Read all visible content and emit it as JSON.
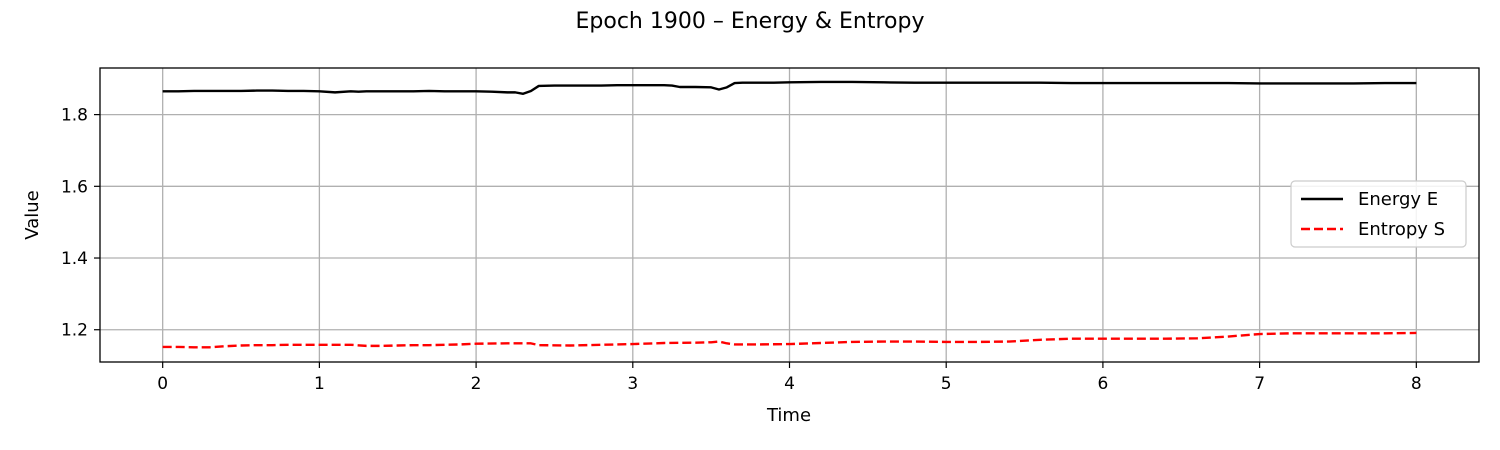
{
  "chart_data": {
    "type": "line",
    "title": "Epoch 1900 – Energy & Entropy",
    "xlabel": "Time",
    "ylabel": "Value",
    "xlim": [
      -0.4,
      8.4
    ],
    "ylim": [
      1.11,
      1.93
    ],
    "xticks": [
      0,
      1,
      2,
      3,
      4,
      5,
      6,
      7,
      8
    ],
    "yticks": [
      1.2,
      1.4,
      1.6,
      1.8
    ],
    "xtick_labels": [
      "0",
      "1",
      "2",
      "3",
      "4",
      "5",
      "6",
      "7",
      "8"
    ],
    "ytick_labels": [
      "1.2",
      "1.4",
      "1.6",
      "1.8"
    ],
    "grid": true,
    "legend_position": "center-right",
    "series": [
      {
        "name": "Energy E",
        "color": "#000000",
        "style": "solid",
        "x": [
          0,
          0.1,
          0.2,
          0.3,
          0.4,
          0.5,
          0.6,
          0.7,
          0.8,
          0.9,
          1.0,
          1.1,
          1.2,
          1.25,
          1.3,
          1.4,
          1.5,
          1.6,
          1.7,
          1.8,
          1.9,
          2.0,
          2.1,
          2.2,
          2.25,
          2.3,
          2.35,
          2.4,
          2.5,
          2.6,
          2.7,
          2.8,
          2.9,
          3.0,
          3.1,
          3.2,
          3.25,
          3.3,
          3.4,
          3.5,
          3.55,
          3.6,
          3.65,
          3.7,
          3.8,
          3.9,
          4.0,
          4.2,
          4.4,
          4.6,
          4.8,
          5.0,
          5.2,
          5.4,
          5.6,
          5.8,
          6.0,
          6.2,
          6.4,
          6.6,
          6.8,
          7.0,
          7.2,
          7.4,
          7.6,
          7.8,
          8.0
        ],
        "y": [
          1.865,
          1.865,
          1.866,
          1.866,
          1.866,
          1.866,
          1.867,
          1.867,
          1.866,
          1.866,
          1.865,
          1.862,
          1.865,
          1.864,
          1.865,
          1.865,
          1.865,
          1.865,
          1.866,
          1.865,
          1.865,
          1.865,
          1.864,
          1.862,
          1.862,
          1.858,
          1.866,
          1.88,
          1.881,
          1.881,
          1.881,
          1.881,
          1.882,
          1.882,
          1.882,
          1.882,
          1.881,
          1.877,
          1.877,
          1.876,
          1.87,
          1.876,
          1.888,
          1.889,
          1.889,
          1.889,
          1.89,
          1.891,
          1.891,
          1.89,
          1.889,
          1.889,
          1.889,
          1.889,
          1.889,
          1.888,
          1.888,
          1.888,
          1.888,
          1.888,
          1.888,
          1.887,
          1.887,
          1.887,
          1.887,
          1.888,
          1.888
        ]
      },
      {
        "name": "Entropy S",
        "color": "#ff0000",
        "style": "dashed",
        "x": [
          0,
          0.1,
          0.2,
          0.3,
          0.4,
          0.5,
          0.6,
          0.7,
          0.8,
          0.9,
          1.0,
          1.1,
          1.2,
          1.3,
          1.4,
          1.5,
          1.6,
          1.7,
          1.8,
          1.9,
          2.0,
          2.2,
          2.3,
          2.35,
          2.4,
          2.6,
          2.8,
          3.0,
          3.2,
          3.4,
          3.5,
          3.55,
          3.6,
          3.65,
          3.8,
          4.0,
          4.2,
          4.4,
          4.6,
          4.8,
          5.0,
          5.2,
          5.4,
          5.6,
          5.8,
          6.0,
          6.2,
          6.4,
          6.6,
          6.8,
          7.0,
          7.2,
          7.4,
          7.6,
          7.8,
          8.0
        ],
        "y": [
          1.152,
          1.152,
          1.151,
          1.151,
          1.154,
          1.156,
          1.157,
          1.157,
          1.158,
          1.158,
          1.158,
          1.158,
          1.158,
          1.155,
          1.155,
          1.156,
          1.157,
          1.157,
          1.158,
          1.159,
          1.161,
          1.162,
          1.162,
          1.162,
          1.157,
          1.156,
          1.158,
          1.16,
          1.163,
          1.164,
          1.165,
          1.167,
          1.162,
          1.159,
          1.159,
          1.16,
          1.163,
          1.166,
          1.167,
          1.167,
          1.166,
          1.166,
          1.167,
          1.172,
          1.175,
          1.175,
          1.175,
          1.175,
          1.176,
          1.181,
          1.188,
          1.19,
          1.19,
          1.19,
          1.19,
          1.191
        ]
      }
    ]
  }
}
